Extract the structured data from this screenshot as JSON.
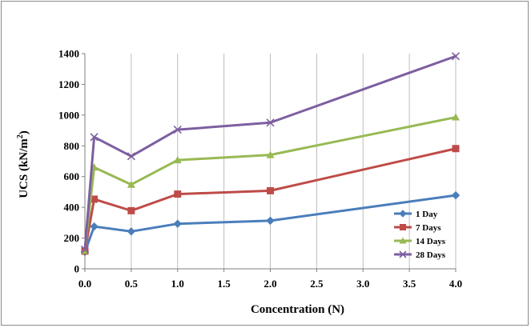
{
  "chart_data": {
    "type": "line",
    "xlabel": "Concentration  (N)",
    "ylabel_main": "UCS (kN/m",
    "ylabel_sup": "2",
    "ylabel_close": ")",
    "xlim": [
      0,
      4
    ],
    "ylim": [
      0,
      1400
    ],
    "x_ticks": [
      "0.0",
      "0.5",
      "1.0",
      "1.5",
      "2.0",
      "2.5",
      "3.0",
      "3.5",
      "4.0"
    ],
    "y_ticks": [
      "0",
      "200",
      "400",
      "600",
      "800",
      "1000",
      "1200",
      "1400"
    ],
    "grid": "vertical",
    "legend_position": "right",
    "x": [
      0,
      0.1,
      0.5,
      1.0,
      2.0,
      4.0
    ],
    "series": [
      {
        "name": "1 Day",
        "color": "#4a7ebb",
        "marker": "diamond",
        "values": [
          110,
          275,
          243,
          293,
          313,
          478
        ]
      },
      {
        "name": "7 Days",
        "color": "#be4b48",
        "marker": "square",
        "values": [
          115,
          453,
          378,
          486,
          508,
          782
        ]
      },
      {
        "name": "14 Days",
        "color": "#98b954",
        "marker": "triangle",
        "values": [
          118,
          660,
          548,
          707,
          741,
          986
        ]
      },
      {
        "name": "28 Days",
        "color": "#7d5fa0",
        "marker": "x",
        "values": [
          125,
          857,
          732,
          905,
          951,
          1383
        ]
      }
    ]
  }
}
